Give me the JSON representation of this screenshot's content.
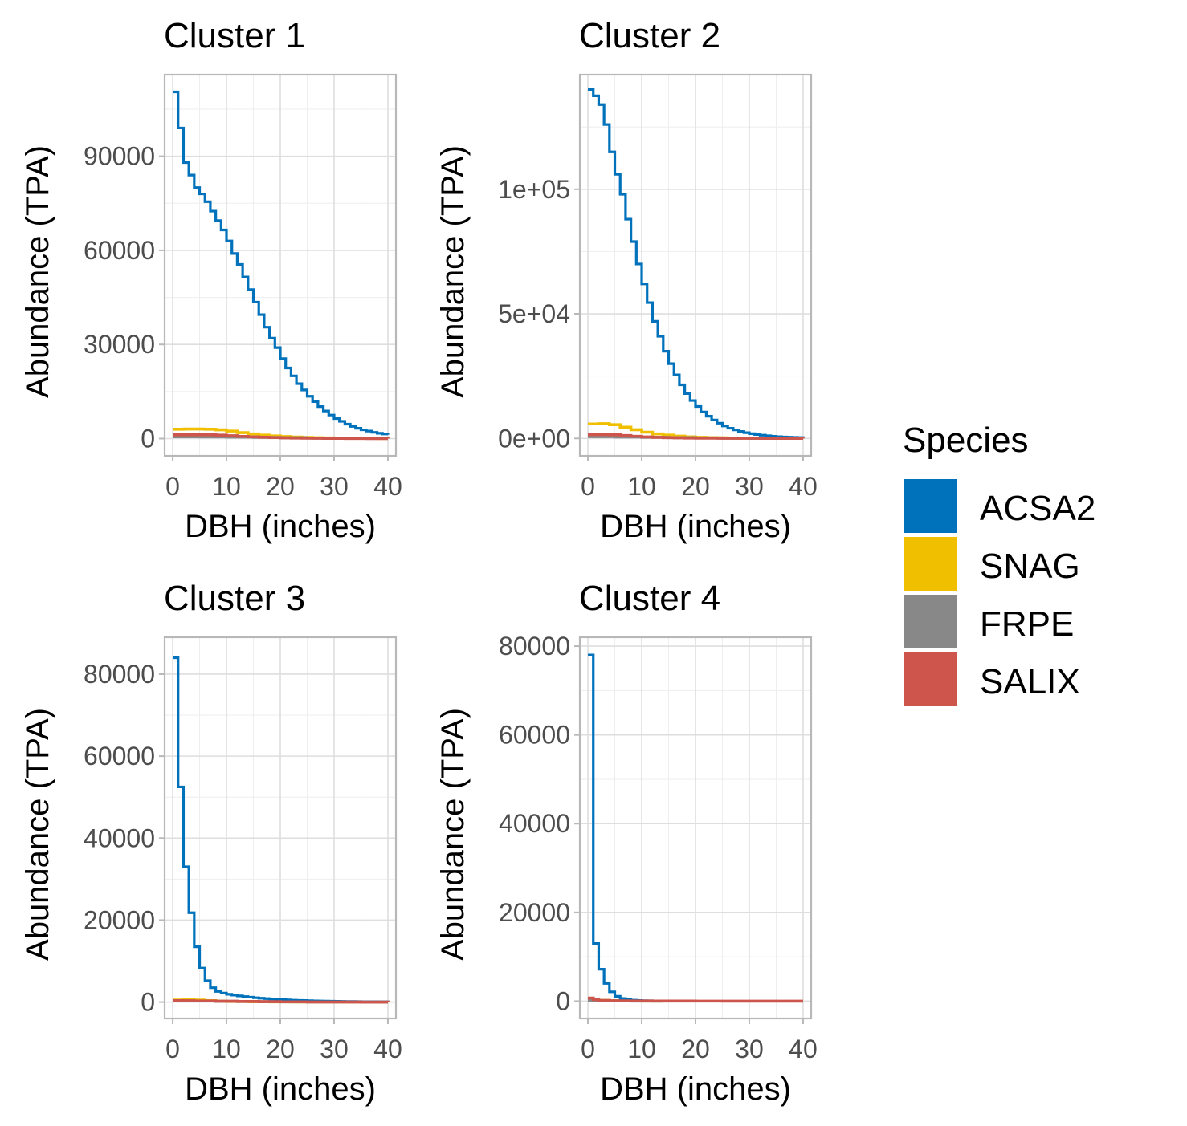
{
  "chart_data": [
    {
      "type": "line",
      "title": "Cluster 1",
      "xlabel": "DBH (inches)",
      "ylabel": "Abundance (TPA)",
      "xlim": [
        -1.5,
        41.5
      ],
      "ylim": [
        -5500,
        116000
      ],
      "x_ticks": [
        0,
        10,
        20,
        30,
        40
      ],
      "x_tick_labels": [
        "0",
        "10",
        "20",
        "30",
        "40"
      ],
      "y_ticks": [
        0,
        30000,
        60000,
        90000
      ],
      "y_tick_labels": [
        "0",
        "30000",
        "60000",
        "90000"
      ],
      "grid": true,
      "series": [
        {
          "name": "ACSA2",
          "color": "#0072BB",
          "x": [
            0,
            1,
            2,
            3,
            4,
            5,
            6,
            7,
            8,
            9,
            10,
            11,
            12,
            13,
            14,
            15,
            16,
            17,
            18,
            19,
            20,
            21,
            22,
            23,
            24,
            25,
            26,
            27,
            28,
            29,
            30,
            31,
            32,
            33,
            34,
            35,
            36,
            37,
            38,
            39,
            40
          ],
          "y": [
            110500,
            99000,
            88000,
            84000,
            80000,
            78000,
            75500,
            72500,
            69500,
            66500,
            63000,
            59000,
            55500,
            51500,
            47500,
            43500,
            39500,
            35500,
            32000,
            29000,
            25500,
            22500,
            20000,
            17500,
            15500,
            13500,
            11800,
            10200,
            8800,
            7500,
            6400,
            5500,
            4600,
            3900,
            3300,
            2800,
            2400,
            2000,
            1700,
            1450,
            1200
          ]
        },
        {
          "name": "SNAG",
          "color": "#F0C000",
          "x": [
            0,
            2,
            4,
            6,
            8,
            10,
            12,
            14,
            16,
            18,
            20,
            22,
            24,
            26,
            28,
            30,
            32,
            34,
            36,
            38,
            40
          ],
          "y": [
            3000,
            3050,
            3050,
            3000,
            2800,
            2400,
            1900,
            1500,
            1100,
            850,
            650,
            500,
            380,
            280,
            200,
            150,
            110,
            80,
            60,
            40,
            30
          ]
        },
        {
          "name": "FRPE",
          "color": "#888888",
          "x": [
            0,
            5,
            10,
            15,
            20,
            25,
            30,
            35,
            40
          ],
          "y": [
            600,
            550,
            480,
            380,
            280,
            180,
            110,
            60,
            30
          ]
        },
        {
          "name": "SALIX",
          "color": "#CD554C",
          "x": [
            0,
            4,
            8,
            10,
            12,
            14,
            16,
            18,
            20,
            22,
            24,
            26,
            28,
            30,
            32,
            34,
            36,
            38,
            40
          ],
          "y": [
            1200,
            1200,
            1100,
            900,
            700,
            550,
            420,
            320,
            240,
            180,
            140,
            100,
            80,
            60,
            45,
            35,
            25,
            20,
            15
          ]
        }
      ]
    },
    {
      "type": "line",
      "title": "Cluster 2",
      "xlabel": "DBH (inches)",
      "ylabel": "Abundance (TPA)",
      "xlim": [
        -1.5,
        41.5
      ],
      "ylim": [
        -7000,
        146000
      ],
      "x_ticks": [
        0,
        10,
        20,
        30,
        40
      ],
      "x_tick_labels": [
        "0",
        "10",
        "20",
        "30",
        "40"
      ],
      "y_ticks": [
        0,
        50000,
        100000
      ],
      "y_tick_labels": [
        "0e+00",
        "5e+04",
        "1e+05"
      ],
      "grid": true,
      "series": [
        {
          "name": "ACSA2",
          "color": "#0072BB",
          "x": [
            0,
            1,
            2,
            3,
            4,
            5,
            6,
            7,
            8,
            9,
            10,
            11,
            12,
            13,
            14,
            15,
            16,
            17,
            18,
            19,
            20,
            21,
            22,
            23,
            24,
            25,
            26,
            27,
            28,
            29,
            30,
            31,
            32,
            33,
            34,
            35,
            36,
            37,
            38,
            39,
            40
          ],
          "y": [
            140000,
            137500,
            134000,
            126000,
            115000,
            106000,
            98000,
            88000,
            79000,
            70000,
            62000,
            54500,
            47000,
            41000,
            35000,
            30000,
            25500,
            21500,
            18000,
            15200,
            12800,
            10600,
            8900,
            7400,
            6100,
            5000,
            4100,
            3400,
            2800,
            2300,
            1900,
            1550,
            1300,
            1050,
            850,
            700,
            580,
            480,
            400,
            330,
            270
          ]
        },
        {
          "name": "SNAG",
          "color": "#F0C000",
          "x": [
            0,
            2,
            4,
            6,
            8,
            10,
            12,
            14,
            16,
            18,
            20,
            22,
            24,
            26,
            28,
            30,
            32,
            34,
            36,
            38,
            40
          ],
          "y": [
            5800,
            5900,
            5500,
            4500,
            3500,
            2500,
            1800,
            1300,
            900,
            650,
            450,
            320,
            230,
            160,
            110,
            80,
            55,
            40,
            28,
            20,
            14
          ]
        },
        {
          "name": "FRPE",
          "color": "#888888",
          "x": [
            0,
            5,
            10,
            15,
            20,
            25,
            30,
            35,
            40
          ],
          "y": [
            700,
            600,
            450,
            300,
            180,
            100,
            55,
            30,
            15
          ]
        },
        {
          "name": "SALIX",
          "color": "#CD554C",
          "x": [
            0,
            4,
            6,
            8,
            10,
            12,
            14,
            16,
            18,
            20,
            24,
            28,
            32,
            36,
            40
          ],
          "y": [
            1500,
            1450,
            1150,
            850,
            600,
            420,
            300,
            220,
            160,
            120,
            70,
            45,
            30,
            20,
            12
          ]
        }
      ]
    },
    {
      "type": "line",
      "title": "Cluster 3",
      "xlabel": "DBH (inches)",
      "ylabel": "Abundance (TPA)",
      "xlim": [
        -1.5,
        41.5
      ],
      "ylim": [
        -4000,
        89000
      ],
      "x_ticks": [
        0,
        10,
        20,
        30,
        40
      ],
      "x_tick_labels": [
        "0",
        "10",
        "20",
        "30",
        "40"
      ],
      "y_ticks": [
        0,
        20000,
        40000,
        60000,
        80000
      ],
      "y_tick_labels": [
        "0",
        "20000",
        "40000",
        "60000",
        "80000"
      ],
      "grid": true,
      "series": [
        {
          "name": "ACSA2",
          "color": "#0072BB",
          "x": [
            0,
            1,
            2,
            3,
            4,
            5,
            6,
            7,
            8,
            9,
            10,
            11,
            12,
            13,
            14,
            15,
            16,
            17,
            18,
            19,
            20,
            21,
            22,
            23,
            24,
            25,
            26,
            27,
            28,
            29,
            30,
            31,
            32,
            33,
            34,
            35,
            36,
            37,
            38,
            39,
            40
          ],
          "y": [
            84000,
            52500,
            33000,
            21800,
            13500,
            8300,
            5200,
            3500,
            2600,
            2200,
            1900,
            1700,
            1500,
            1350,
            1200,
            1050,
            950,
            850,
            750,
            650,
            580,
            520,
            470,
            420,
            380,
            340,
            300,
            270,
            240,
            210,
            190,
            170,
            150,
            130,
            115,
            100,
            90,
            80,
            70,
            60,
            55
          ]
        },
        {
          "name": "SNAG",
          "color": "#F0C000",
          "x": [
            0,
            2,
            4,
            6,
            8,
            10,
            14,
            18,
            22,
            26,
            30,
            35,
            40
          ],
          "y": [
            500,
            550,
            500,
            350,
            220,
            140,
            80,
            45,
            25,
            15,
            10,
            6,
            4
          ]
        },
        {
          "name": "FRPE",
          "color": "#888888",
          "x": [
            0,
            4,
            8,
            12,
            16,
            20,
            25,
            30,
            35,
            40
          ],
          "y": [
            300,
            260,
            200,
            140,
            90,
            55,
            30,
            15,
            8,
            4
          ]
        },
        {
          "name": "SALIX",
          "color": "#CD554C",
          "x": [
            0,
            2,
            4,
            8,
            12,
            16,
            20,
            25,
            30,
            35,
            40
          ],
          "y": [
            350,
            320,
            280,
            200,
            140,
            95,
            60,
            35,
            20,
            10,
            5
          ]
        }
      ]
    },
    {
      "type": "line",
      "title": "Cluster 4",
      "xlabel": "DBH (inches)",
      "ylabel": "Abundance (TPA)",
      "xlim": [
        -1.5,
        41.5
      ],
      "ylim": [
        -3900,
        82000
      ],
      "x_ticks": [
        0,
        10,
        20,
        30,
        40
      ],
      "x_tick_labels": [
        "0",
        "10",
        "20",
        "30",
        "40"
      ],
      "y_ticks": [
        0,
        20000,
        40000,
        60000,
        80000
      ],
      "y_tick_labels": [
        "0",
        "20000",
        "40000",
        "60000",
        "80000"
      ],
      "grid": true,
      "series": [
        {
          "name": "ACSA2",
          "color": "#0072BB",
          "x": [
            0,
            1,
            2,
            3,
            4,
            5,
            6,
            7,
            8,
            9,
            10,
            11,
            12,
            13,
            14
          ],
          "y": [
            78000,
            13000,
            7200,
            4000,
            2100,
            1100,
            600,
            350,
            220,
            150,
            110,
            80,
            60,
            40,
            30
          ]
        },
        {
          "name": "SNAG",
          "color": "#F0C000",
          "x": [
            0,
            2,
            4,
            6,
            8,
            10,
            14
          ],
          "y": [
            200,
            180,
            120,
            70,
            40,
            20,
            8
          ]
        },
        {
          "name": "FRPE",
          "color": "#888888",
          "x": [
            0,
            2,
            4,
            6,
            8,
            10,
            14
          ],
          "y": [
            150,
            130,
            90,
            50,
            25,
            12,
            5
          ]
        },
        {
          "name": "SALIX",
          "color": "#CD554C",
          "x": [
            0,
            1,
            2,
            4,
            8,
            12,
            16,
            20,
            25,
            30,
            35,
            40
          ],
          "y": [
            700,
            350,
            150,
            80,
            40,
            25,
            15,
            10,
            6,
            4,
            3,
            2
          ]
        }
      ]
    }
  ],
  "legend": {
    "title": "Species",
    "items": [
      {
        "label": "ACSA2",
        "color": "#0072BB"
      },
      {
        "label": "SNAG",
        "color": "#F0C000"
      },
      {
        "label": "FRPE",
        "color": "#888888"
      },
      {
        "label": "SALIX",
        "color": "#CD554C"
      }
    ]
  }
}
